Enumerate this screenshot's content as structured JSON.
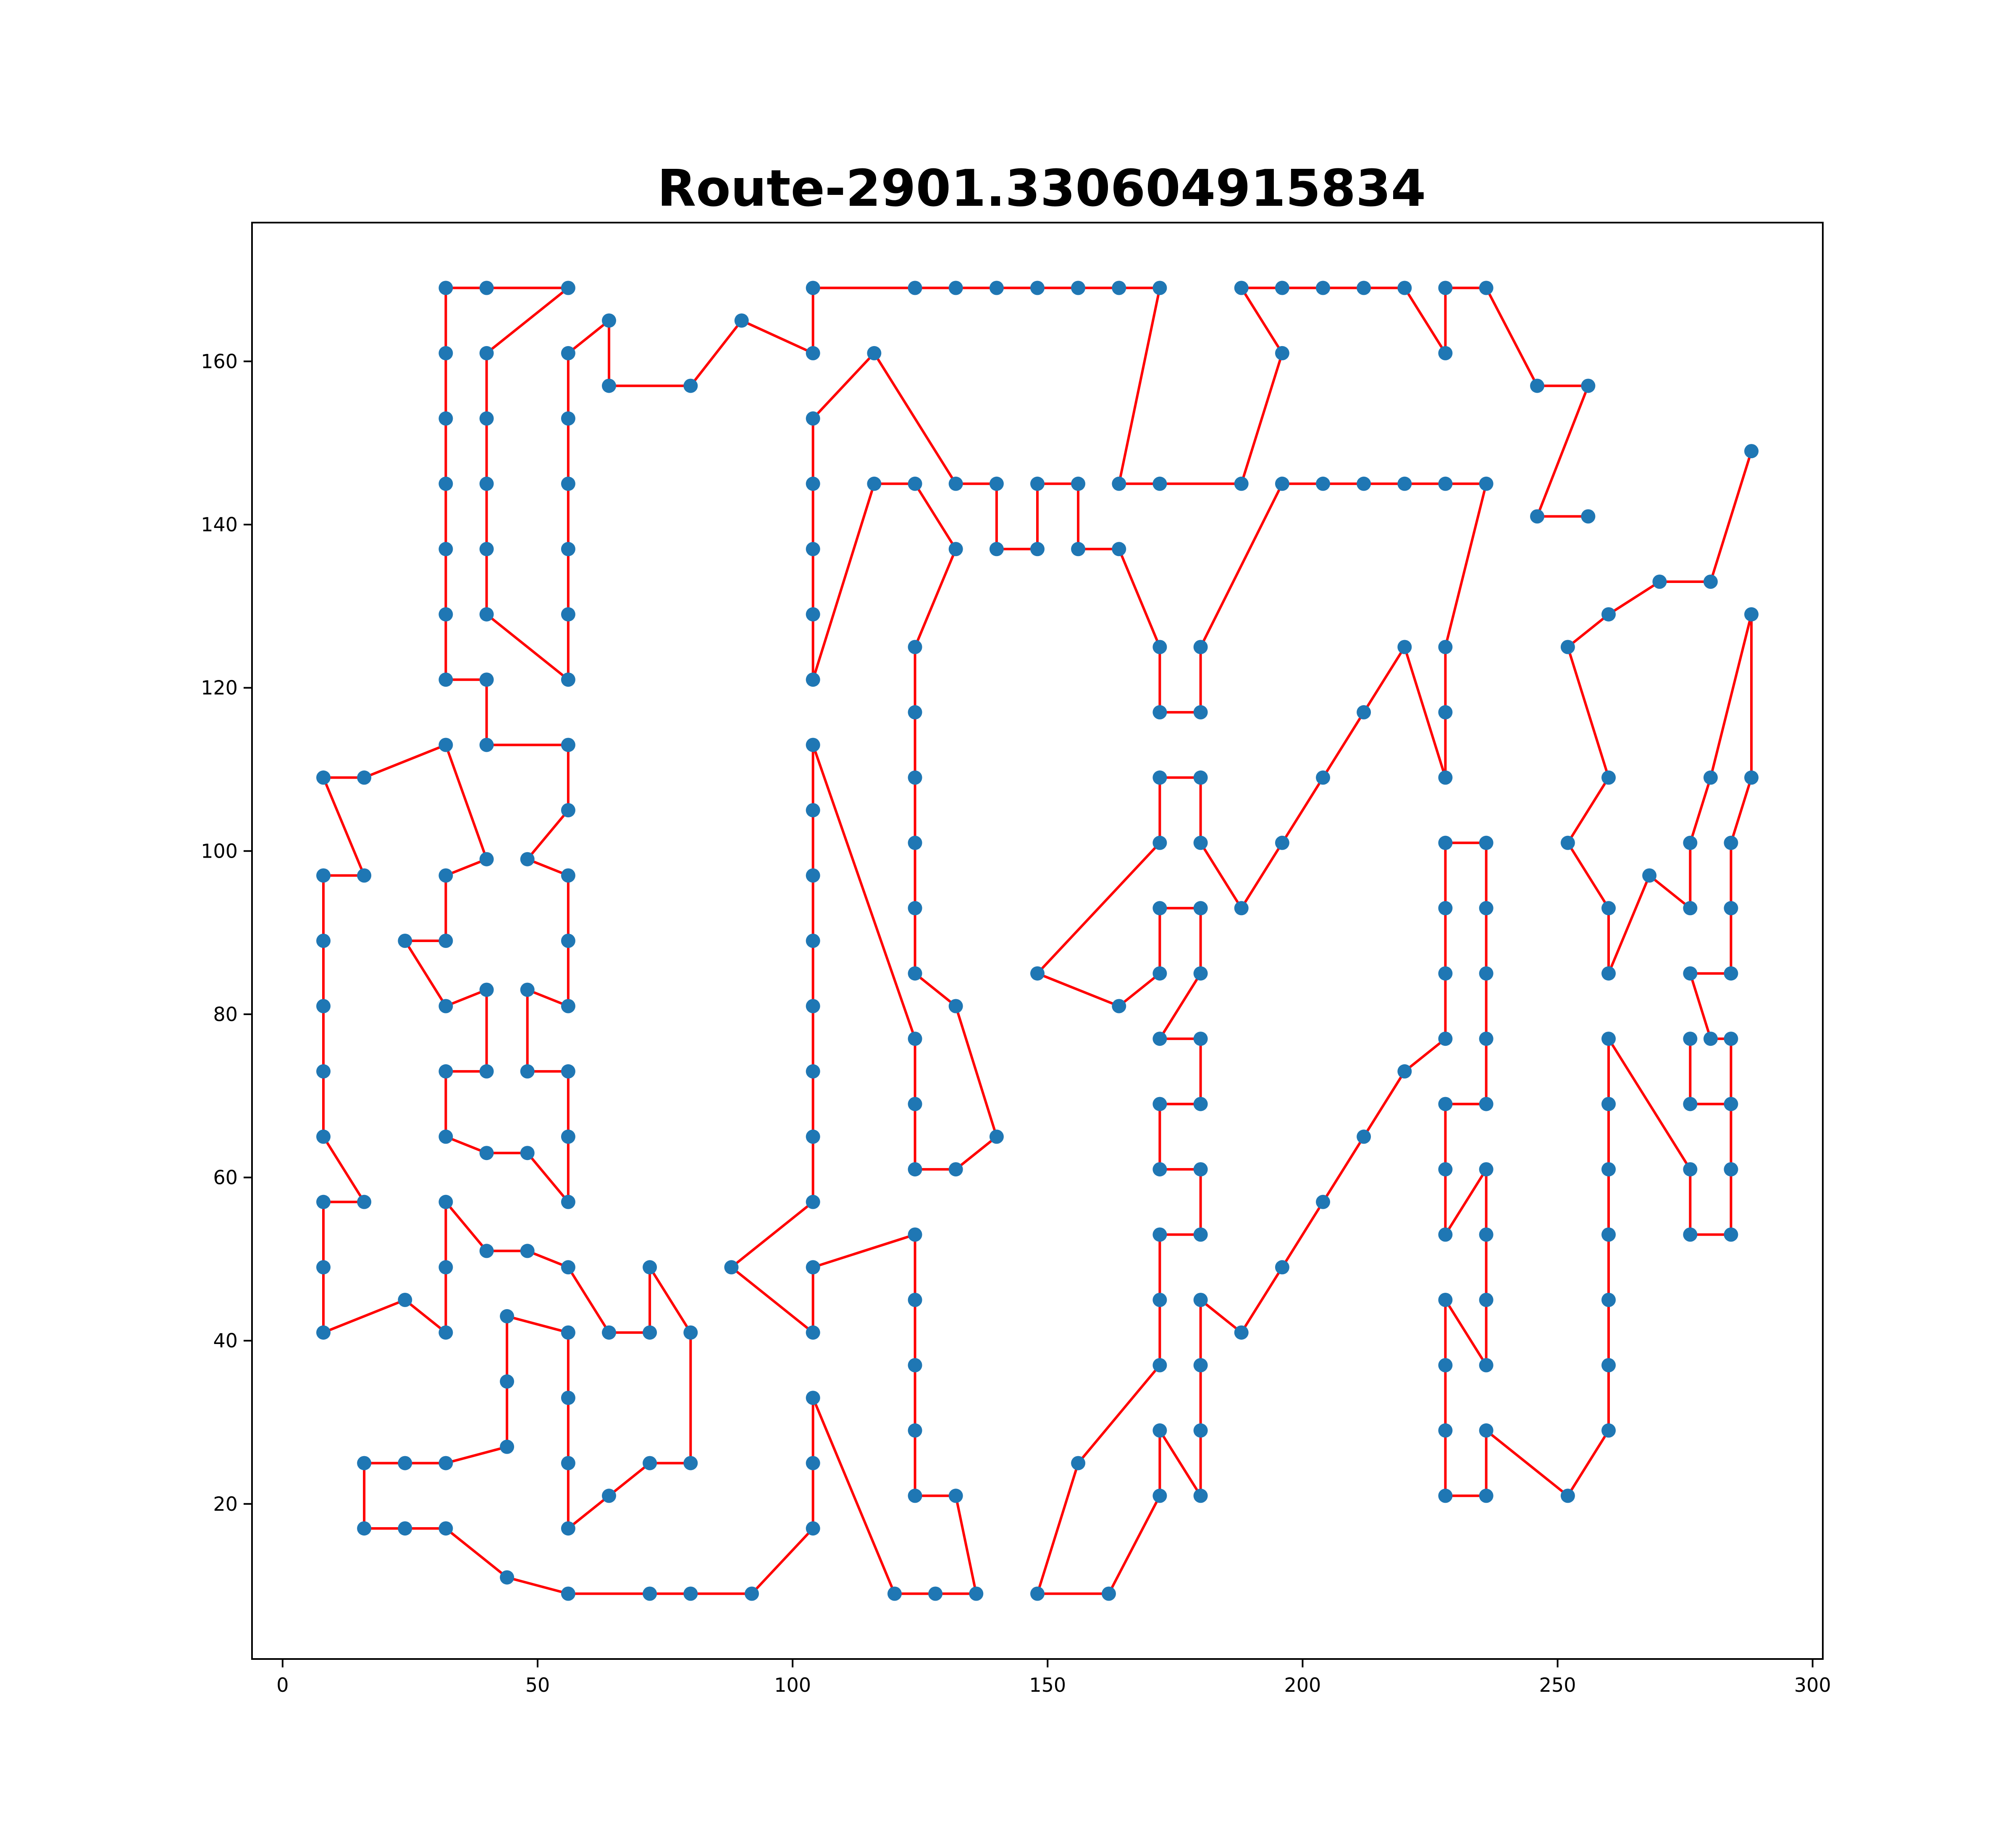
{
  "chart_data": {
    "type": "scatter",
    "title": "Route-2901.330604915834",
    "xlabel": "",
    "ylabel": "",
    "xlim": [
      -6.0,
      302.0
    ],
    "ylim": [
      1.0,
      177.0
    ],
    "xticks": [
      0,
      50,
      100,
      150,
      200,
      250,
      300
    ],
    "yticks": [
      20,
      40,
      60,
      80,
      100,
      120,
      140,
      160
    ],
    "grid": false,
    "legend": "none",
    "colors": {
      "points": "#1f77b4",
      "route": "#ff0000",
      "axes": "#000000",
      "background": "#ffffff"
    },
    "series": [
      {
        "kind": "line",
        "points": [
          [
            288,
            149
          ],
          [
            280,
            133
          ],
          [
            270,
            133
          ],
          [
            260,
            129
          ],
          [
            252,
            125
          ],
          [
            260,
            109
          ],
          [
            252,
            101
          ],
          [
            260,
            93
          ],
          [
            260,
            85
          ],
          [
            268,
            97
          ],
          [
            276,
            93
          ],
          [
            276,
            101
          ],
          [
            280,
            109
          ],
          [
            288,
            129
          ],
          [
            288,
            109
          ],
          [
            284,
            101
          ],
          [
            284,
            93
          ],
          [
            284,
            85
          ],
          [
            276,
            85
          ],
          [
            280,
            77
          ],
          [
            284,
            77
          ],
          [
            284,
            69
          ],
          [
            276,
            69
          ],
          [
            276,
            77
          ],
          [
            276,
            69
          ],
          [
            284,
            69
          ],
          [
            284,
            61
          ],
          [
            284,
            53
          ],
          [
            276,
            53
          ],
          [
            276,
            61
          ],
          [
            260,
            77
          ],
          [
            260,
            69
          ],
          [
            260,
            61
          ],
          [
            260,
            53
          ],
          [
            260,
            45
          ],
          [
            260,
            37
          ],
          [
            260,
            29
          ],
          [
            252,
            21
          ],
          [
            236,
            29
          ],
          [
            236,
            21
          ],
          [
            228,
            21
          ],
          [
            228,
            29
          ],
          [
            228,
            37
          ],
          [
            228,
            45
          ],
          [
            236,
            37
          ],
          [
            236,
            45
          ],
          [
            236,
            53
          ],
          [
            236,
            61
          ],
          [
            228,
            53
          ],
          [
            228,
            61
          ],
          [
            228,
            69
          ],
          [
            236,
            69
          ],
          [
            236,
            77
          ],
          [
            236,
            85
          ],
          [
            236,
            93
          ],
          [
            236,
            101
          ],
          [
            228,
            101
          ],
          [
            228,
            93
          ],
          [
            228,
            85
          ],
          [
            228,
            77
          ],
          [
            220,
            73
          ],
          [
            212,
            65
          ],
          [
            204,
            57
          ],
          [
            196,
            49
          ],
          [
            188,
            41
          ],
          [
            180,
            45
          ],
          [
            180,
            37
          ],
          [
            180,
            29
          ],
          [
            180,
            21
          ],
          [
            172,
            29
          ],
          [
            172,
            21
          ],
          [
            162,
            9
          ],
          [
            148,
            9
          ],
          [
            156,
            25
          ],
          [
            172,
            37
          ],
          [
            172,
            45
          ],
          [
            172,
            53
          ],
          [
            180,
            53
          ],
          [
            180,
            61
          ],
          [
            172,
            61
          ],
          [
            172,
            69
          ],
          [
            180,
            69
          ],
          [
            180,
            77
          ],
          [
            172,
            77
          ],
          [
            180,
            85
          ],
          [
            180,
            93
          ],
          [
            172,
            93
          ],
          [
            172,
            85
          ],
          [
            164,
            81
          ],
          [
            148,
            85
          ],
          [
            172,
            101
          ],
          [
            172,
            109
          ],
          [
            180,
            109
          ],
          [
            180,
            101
          ],
          [
            188,
            93
          ],
          [
            196,
            101
          ],
          [
            204,
            109
          ],
          [
            212,
            117
          ],
          [
            220,
            125
          ],
          [
            228,
            109
          ],
          [
            228,
            117
          ],
          [
            228,
            125
          ],
          [
            236,
            145
          ],
          [
            228,
            145
          ],
          [
            220,
            145
          ],
          [
            212,
            145
          ],
          [
            204,
            145
          ],
          [
            196,
            145
          ],
          [
            180,
            125
          ],
          [
            180,
            117
          ],
          [
            172,
            117
          ],
          [
            172,
            125
          ],
          [
            164,
            137
          ],
          [
            156,
            137
          ],
          [
            156,
            145
          ],
          [
            148,
            145
          ],
          [
            148,
            137
          ],
          [
            140,
            137
          ],
          [
            140,
            145
          ],
          [
            132,
            145
          ],
          [
            116,
            161
          ],
          [
            104,
            153
          ],
          [
            104,
            145
          ],
          [
            104,
            137
          ],
          [
            104,
            129
          ],
          [
            104,
            121
          ],
          [
            116,
            145
          ],
          [
            124,
            145
          ],
          [
            132,
            137
          ],
          [
            124,
            125
          ],
          [
            124,
            117
          ],
          [
            124,
            109
          ],
          [
            124,
            101
          ],
          [
            124,
            93
          ],
          [
            124,
            85
          ],
          [
            132,
            81
          ],
          [
            140,
            65
          ],
          [
            132,
            61
          ],
          [
            124,
            61
          ],
          [
            124,
            69
          ],
          [
            124,
            77
          ],
          [
            104,
            113
          ],
          [
            104,
            105
          ],
          [
            104,
            97
          ],
          [
            104,
            89
          ],
          [
            104,
            81
          ],
          [
            104,
            73
          ],
          [
            104,
            65
          ],
          [
            104,
            57
          ],
          [
            88,
            49
          ],
          [
            104,
            41
          ],
          [
            104,
            49
          ],
          [
            124,
            53
          ],
          [
            124,
            45
          ],
          [
            124,
            37
          ],
          [
            124,
            29
          ],
          [
            124,
            21
          ],
          [
            132,
            21
          ],
          [
            136,
            9
          ],
          [
            128,
            9
          ],
          [
            120,
            9
          ],
          [
            104,
            33
          ],
          [
            104,
            25
          ],
          [
            104,
            17
          ],
          [
            92,
            9
          ],
          [
            80,
            9
          ],
          [
            72,
            9
          ],
          [
            56,
            9
          ],
          [
            44,
            11
          ],
          [
            32,
            17
          ],
          [
            24,
            17
          ],
          [
            16,
            17
          ],
          [
            16,
            25
          ],
          [
            24,
            25
          ],
          [
            32,
            25
          ],
          [
            44,
            27
          ],
          [
            44,
            35
          ],
          [
            44,
            43
          ],
          [
            56,
            41
          ],
          [
            56,
            33
          ],
          [
            56,
            25
          ],
          [
            56,
            17
          ],
          [
            64,
            21
          ],
          [
            72,
            25
          ],
          [
            80,
            25
          ],
          [
            80,
            41
          ],
          [
            72,
            49
          ],
          [
            72,
            41
          ],
          [
            64,
            41
          ],
          [
            56,
            49
          ],
          [
            48,
            51
          ],
          [
            40,
            51
          ],
          [
            32,
            57
          ],
          [
            32,
            49
          ],
          [
            32,
            41
          ],
          [
            24,
            45
          ],
          [
            8,
            41
          ],
          [
            8,
            49
          ],
          [
            8,
            57
          ],
          [
            16,
            57
          ],
          [
            8,
            65
          ],
          [
            8,
            73
          ],
          [
            8,
            81
          ],
          [
            8,
            89
          ],
          [
            8,
            97
          ],
          [
            16,
            97
          ],
          [
            8,
            109
          ],
          [
            16,
            109
          ],
          [
            32,
            113
          ],
          [
            40,
            99
          ],
          [
            32,
            97
          ],
          [
            32,
            89
          ],
          [
            24,
            89
          ],
          [
            32,
            81
          ],
          [
            40,
            83
          ],
          [
            40,
            73
          ],
          [
            32,
            73
          ],
          [
            32,
            65
          ],
          [
            40,
            63
          ],
          [
            48,
            63
          ],
          [
            56,
            57
          ],
          [
            56,
            65
          ],
          [
            56,
            73
          ],
          [
            48,
            73
          ],
          [
            48,
            83
          ],
          [
            56,
            81
          ],
          [
            56,
            89
          ],
          [
            56,
            97
          ],
          [
            48,
            99
          ],
          [
            56,
            105
          ],
          [
            56,
            113
          ],
          [
            40,
            113
          ],
          [
            40,
            121
          ],
          [
            32,
            121
          ],
          [
            32,
            129
          ],
          [
            32,
            137
          ],
          [
            32,
            145
          ],
          [
            32,
            153
          ],
          [
            32,
            161
          ],
          [
            32,
            169
          ],
          [
            40,
            169
          ],
          [
            56,
            169
          ],
          [
            40,
            161
          ],
          [
            40,
            153
          ],
          [
            40,
            145
          ],
          [
            40,
            137
          ],
          [
            40,
            129
          ],
          [
            56,
            121
          ],
          [
            56,
            129
          ],
          [
            56,
            137
          ],
          [
            56,
            145
          ],
          [
            56,
            153
          ],
          [
            56,
            161
          ],
          [
            64,
            165
          ],
          [
            64,
            157
          ],
          [
            80,
            157
          ],
          [
            90,
            165
          ],
          [
            104,
            161
          ],
          [
            104,
            169
          ],
          [
            124,
            169
          ],
          [
            132,
            169
          ],
          [
            140,
            169
          ],
          [
            148,
            169
          ],
          [
            156,
            169
          ],
          [
            164,
            169
          ],
          [
            172,
            169
          ],
          [
            164,
            145
          ],
          [
            172,
            145
          ],
          [
            188,
            145
          ],
          [
            196,
            161
          ],
          [
            188,
            169
          ],
          [
            196,
            169
          ],
          [
            204,
            169
          ],
          [
            212,
            169
          ],
          [
            220,
            169
          ],
          [
            228,
            161
          ],
          [
            228,
            169
          ],
          [
            236,
            169
          ],
          [
            246,
            157
          ],
          [
            256,
            157
          ],
          [
            246,
            141
          ],
          [
            256,
            141
          ]
        ]
      }
    ]
  }
}
